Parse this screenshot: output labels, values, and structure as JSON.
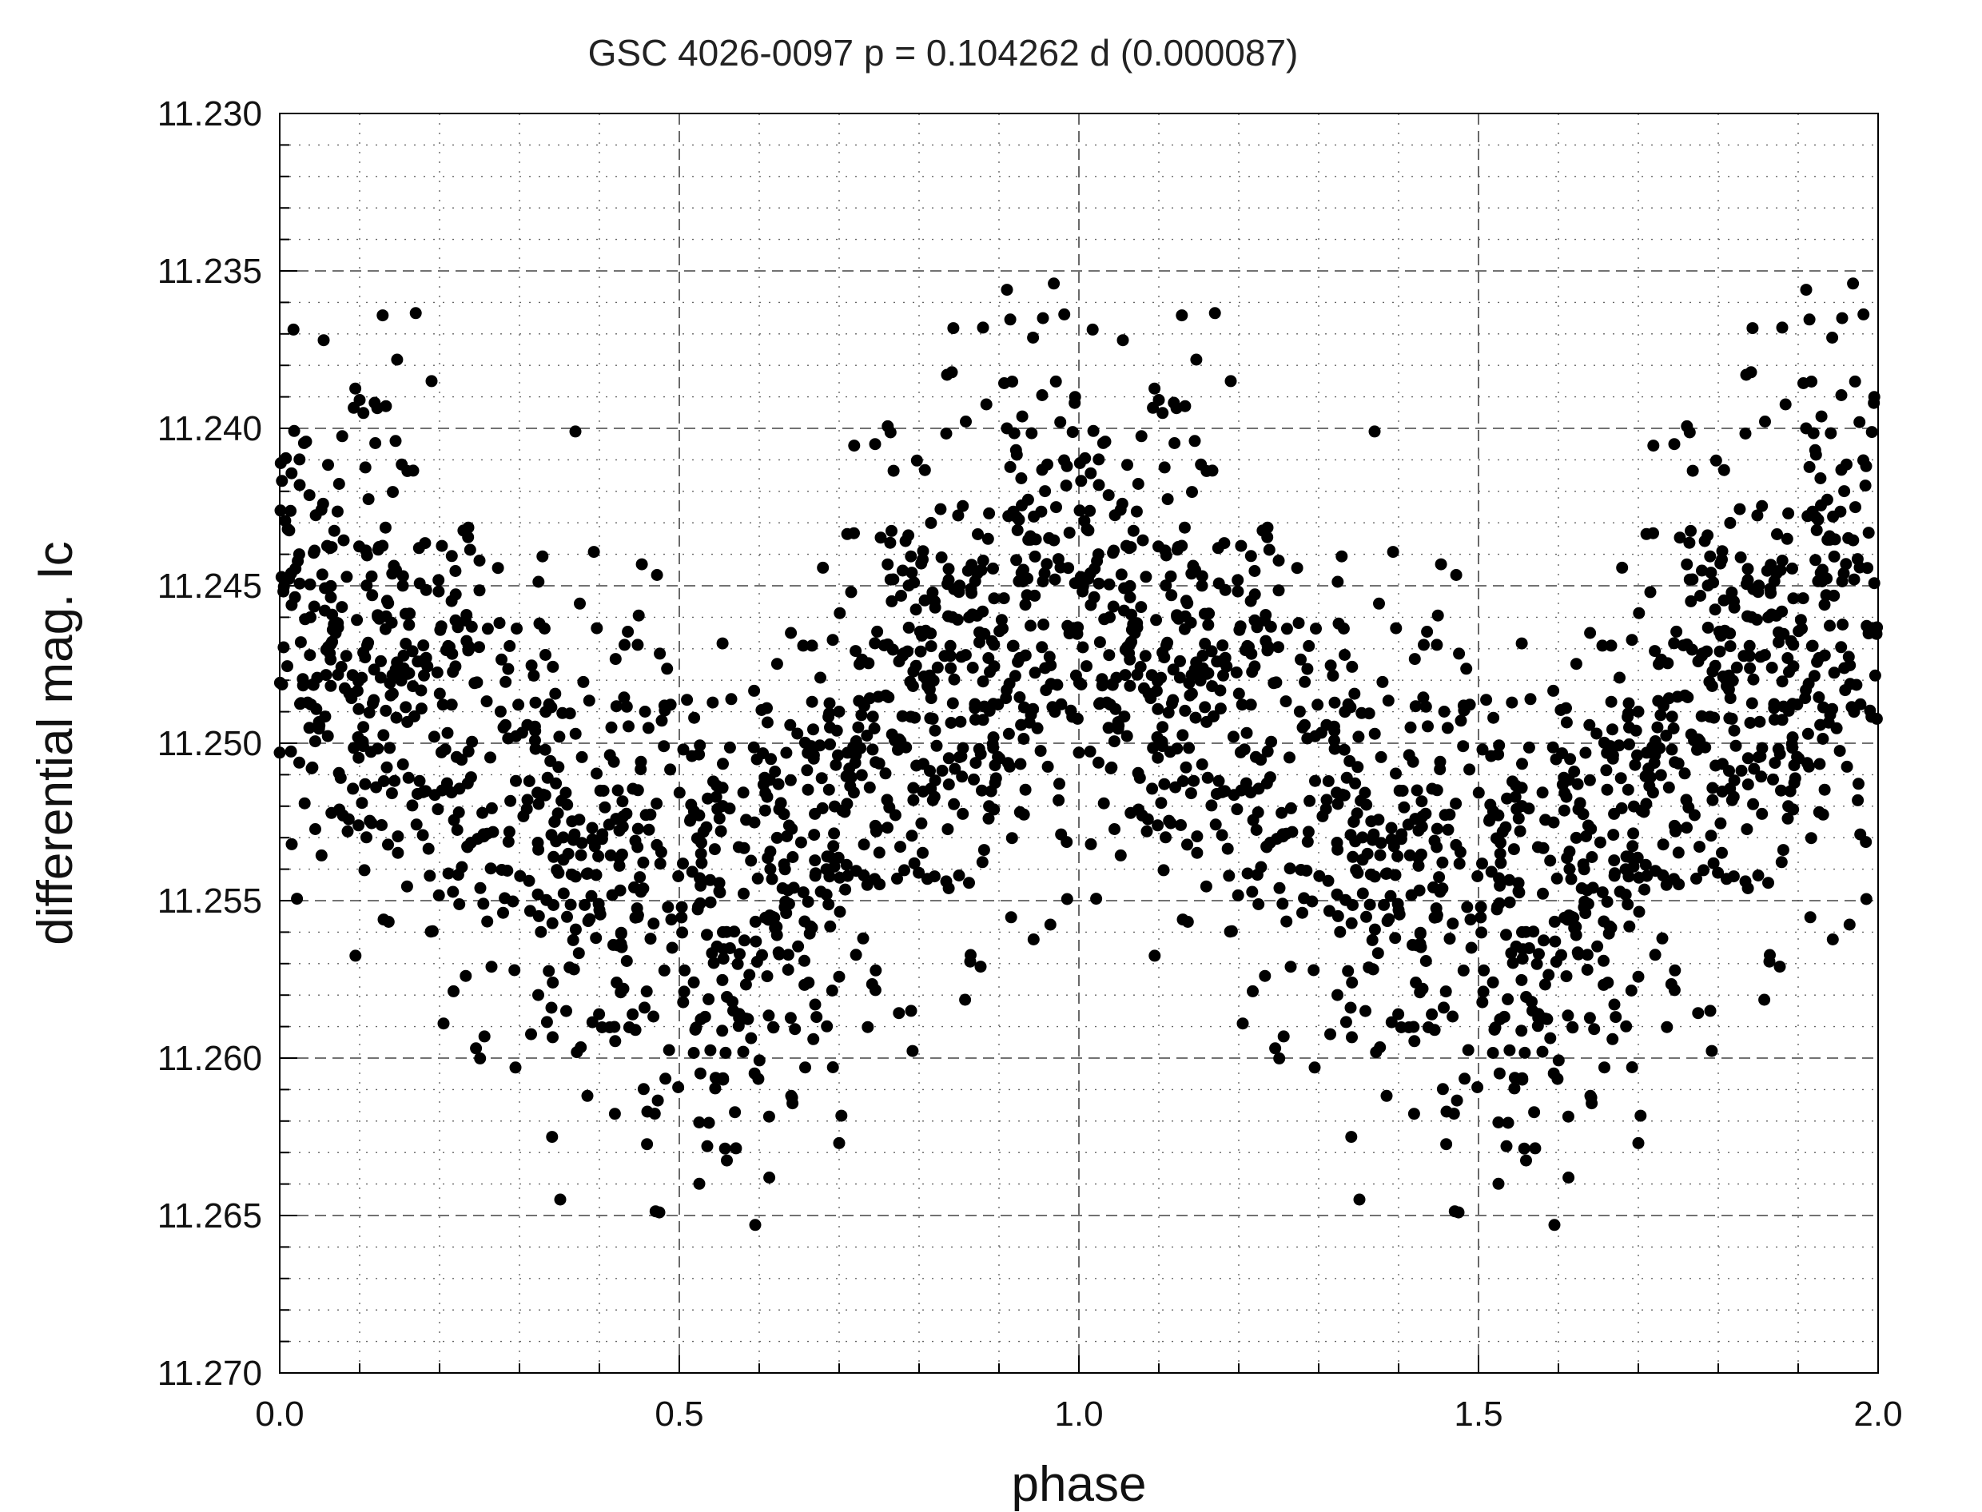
{
  "chart_data": {
    "type": "scatter",
    "title": "GSC 4026-0097  p = 0.104262 d (0.000087)",
    "xlabel": "phase",
    "ylabel": "differential mag.  Ic",
    "xlim": [
      0.0,
      2.0
    ],
    "ylim": [
      11.23,
      11.27
    ],
    "y_inverted": true,
    "x_ticks": [
      "0.0",
      "0.5",
      "1.0",
      "1.5",
      "2.0"
    ],
    "y_ticks": [
      "11.230",
      "11.235",
      "11.240",
      "11.245",
      "11.250",
      "11.255",
      "11.260",
      "11.265",
      "11.270"
    ],
    "grid": true,
    "legend": "none",
    "marker_color": "#000000",
    "series": [
      {
        "phase_model": "mean(phase) = 11.2506 - 0.0045*cos(2*pi*phase); scatter sd ~0.0040 mag; data repeated at phase+1",
        "points": [
          [
            0.01,
            11.2432
          ],
          [
            0.025,
            11.2418
          ],
          [
            0.04,
            11.2508
          ],
          [
            0.055,
            11.2372
          ],
          [
            0.07,
            11.2465
          ],
          [
            0.085,
            11.2528
          ],
          [
            0.1,
            11.2391
          ],
          [
            0.115,
            11.2447
          ],
          [
            0.13,
            11.2556
          ],
          [
            0.145,
            11.2404
          ],
          [
            0.16,
            11.2478
          ],
          [
            0.175,
            11.2512
          ],
          [
            0.19,
            11.2385
          ],
          [
            0.205,
            11.2589
          ],
          [
            0.22,
            11.2461
          ],
          [
            0.235,
            11.2533
          ],
          [
            0.25,
            11.2442
          ],
          [
            0.265,
            11.2571
          ],
          [
            0.28,
            11.2495
          ],
          [
            0.295,
            11.2603
          ],
          [
            0.31,
            11.2518
          ],
          [
            0.325,
            11.2462
          ],
          [
            0.34,
            11.2584
          ],
          [
            0.355,
            11.2537
          ],
          [
            0.37,
            11.2401
          ],
          [
            0.385,
            11.2612
          ],
          [
            0.4,
            11.2553
          ],
          [
            0.415,
            11.2495
          ],
          [
            0.43,
            11.2578
          ],
          [
            0.445,
            11.2531
          ],
          [
            0.46,
            11.2617
          ],
          [
            0.475,
            11.2649
          ],
          [
            0.49,
            11.2556
          ],
          [
            0.505,
            11.2502
          ],
          [
            0.52,
            11.2591
          ],
          [
            0.535,
            11.2628
          ],
          [
            0.55,
            11.2547
          ],
          [
            0.565,
            11.2486
          ],
          [
            0.58,
            11.2598
          ],
          [
            0.595,
            11.2653
          ],
          [
            0.61,
            11.2574
          ],
          [
            0.625,
            11.2521
          ],
          [
            0.64,
            11.2612
          ],
          [
            0.655,
            11.2469
          ],
          [
            0.67,
            11.2583
          ],
          [
            0.685,
            11.2536
          ],
          [
            0.7,
            11.2627
          ],
          [
            0.715,
            11.2452
          ],
          [
            0.73,
            11.2562
          ],
          [
            0.745,
            11.2405
          ],
          [
            0.76,
            11.2518
          ],
          [
            0.775,
            11.2474
          ],
          [
            0.79,
            11.2585
          ],
          [
            0.805,
            11.2439
          ],
          [
            0.82,
            11.2496
          ],
          [
            0.835,
            11.2383
          ],
          [
            0.85,
            11.2542
          ],
          [
            0.865,
            11.2451
          ],
          [
            0.88,
            11.2368
          ],
          [
            0.895,
            11.2507
          ],
          [
            0.91,
            11.2356
          ],
          [
            0.925,
            11.2429
          ],
          [
            0.94,
            11.2491
          ],
          [
            0.955,
            11.2365
          ],
          [
            0.97,
            11.2448
          ],
          [
            0.985,
            11.2412
          ],
          [
            1.0,
            11.2503
          ]
        ]
      }
    ]
  }
}
